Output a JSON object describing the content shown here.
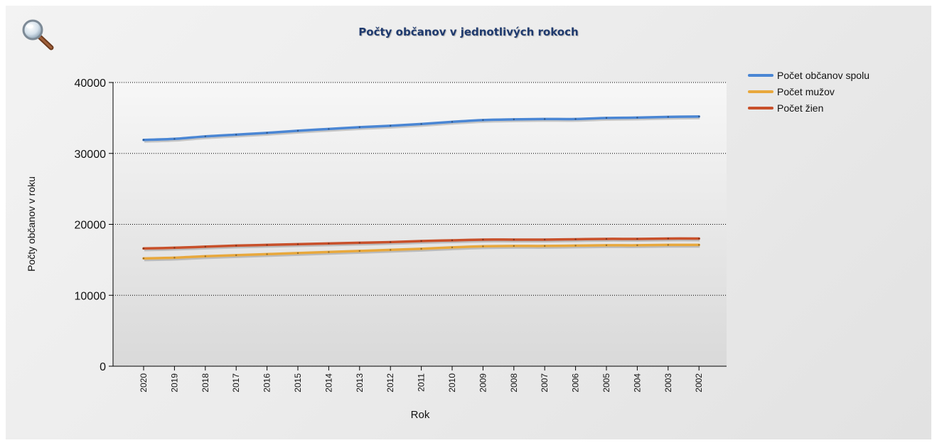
{
  "chart_data": {
    "type": "line",
    "title": "Počty občanov v jednotlivých rokoch",
    "xlabel": "Rok",
    "ylabel": "Počty občanov v roku",
    "x": [
      "2020",
      "2019",
      "2018",
      "2017",
      "2016",
      "2015",
      "2014",
      "2013",
      "2012",
      "2011",
      "2010",
      "2009",
      "2008",
      "2007",
      "2006",
      "2005",
      "2004",
      "2003",
      "2002"
    ],
    "ylim": [
      0,
      40000
    ],
    "yticks": [
      0,
      10000,
      20000,
      30000,
      40000
    ],
    "grid": "horizontal-dotted",
    "legend_position": "right",
    "series": [
      {
        "name": "Počet občanov spolu",
        "color": "#4a86d4",
        "values": [
          31900,
          32050,
          32400,
          32650,
          32900,
          33200,
          33450,
          33700,
          33900,
          34150,
          34450,
          34700,
          34800,
          34850,
          34850,
          35000,
          35050,
          35150,
          35200
        ]
      },
      {
        "name": "Počet mužov",
        "color": "#e8a83c",
        "values": [
          15200,
          15300,
          15500,
          15650,
          15800,
          15950,
          16100,
          16250,
          16400,
          16550,
          16750,
          16900,
          16950,
          16950,
          17000,
          17050,
          17050,
          17100,
          17100
        ]
      },
      {
        "name": "Počet žien",
        "color": "#c8502a",
        "values": [
          16600,
          16700,
          16850,
          17000,
          17100,
          17200,
          17300,
          17400,
          17500,
          17650,
          17750,
          17850,
          17850,
          17850,
          17900,
          17950,
          17950,
          18000,
          18000
        ]
      }
    ]
  },
  "icons": {
    "zoom": "magnifier-icon"
  }
}
